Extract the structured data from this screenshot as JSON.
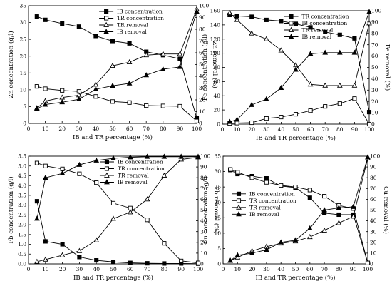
{
  "colors": {
    "ink": "#000000",
    "background": "#ffffff"
  },
  "chart_data": [
    {
      "id": "zn",
      "type": "line",
      "xlabel": "IB and TR percentage (%)",
      "ylabel_left": "Zn concentration (g/l)",
      "ylabel_right": "Zn removal (%)",
      "xlim": [
        0,
        100
      ],
      "ylim_left": [
        0,
        35
      ],
      "ylim_right": [
        0,
        100
      ],
      "xticks": [
        "0",
        "10",
        "20",
        "30",
        "40",
        "50",
        "60",
        "70",
        "80",
        "90",
        "100"
      ],
      "yticks_left": [
        "0",
        "5",
        "10",
        "15",
        "20",
        "25",
        "30",
        "35"
      ],
      "yticks_right": [
        "0",
        "10",
        "20",
        "30",
        "40",
        "50",
        "60",
        "70",
        "80",
        "90",
        "100"
      ],
      "legend": "top-right",
      "series": [
        {
          "name": "IB concentration",
          "axis": "left",
          "marker": "filled-square",
          "x": [
            5,
            10,
            20,
            30,
            40,
            50,
            60,
            70,
            80,
            90,
            100
          ],
          "y": [
            31.8,
            30.8,
            29.7,
            28.8,
            26,
            24.5,
            23.8,
            21.3,
            20.3,
            19.2,
            1.5
          ]
        },
        {
          "name": "TR concentration",
          "axis": "left",
          "marker": "open-square",
          "x": [
            5,
            10,
            20,
            30,
            40,
            50,
            60,
            70,
            80,
            90,
            100
          ],
          "y": [
            11,
            10.3,
            9.8,
            9.5,
            8,
            6.5,
            6.2,
            5.3,
            5.2,
            5.1,
            0.7
          ]
        },
        {
          "name": "TR removal",
          "axis": "right",
          "marker": "open-triangle",
          "x": [
            5,
            10,
            20,
            30,
            40,
            50,
            60,
            70,
            80,
            90,
            100
          ],
          "y": [
            13,
            19,
            22,
            24,
            33,
            49,
            52,
            58,
            59,
            59,
            97
          ]
        },
        {
          "name": "IB removal",
          "axis": "right",
          "marker": "filled-triangle",
          "x": [
            5,
            10,
            20,
            30,
            40,
            50,
            60,
            70,
            80,
            90,
            100
          ],
          "y": [
            12.5,
            16,
            18,
            20.5,
            29,
            32,
            34,
            41,
            46,
            48,
            95
          ]
        }
      ]
    },
    {
      "id": "fe",
      "type": "line",
      "xlabel": "IB and TR percentage (%)",
      "ylabel_left": "Fe concentration (g/l)",
      "ylabel_right": "Fe removal (%)",
      "xlim": [
        0,
        100
      ],
      "ylim_left": [
        0,
        160
      ],
      "ylim_right": [
        0,
        100
      ],
      "xticks": [
        "0",
        "10",
        "20",
        "30",
        "40",
        "50",
        "60",
        "70",
        "80",
        "90",
        "100"
      ],
      "yticks_left": [
        "0",
        "20",
        "40",
        "60",
        "80",
        "100",
        "120",
        "140",
        "160"
      ],
      "yticks_right": [
        "0",
        "10",
        "20",
        "30",
        "40",
        "50",
        "60",
        "70",
        "80",
        "90",
        "100"
      ],
      "legend": "top-right",
      "series": [
        {
          "name": "TR concentration",
          "axis": "left",
          "marker": "filled-square",
          "x": [
            5,
            10,
            20,
            30,
            40,
            50,
            60,
            70,
            80,
            90,
            100
          ],
          "y": [
            154,
            152.5,
            151.5,
            147,
            145.5,
            141.5,
            136.5,
            130,
            126,
            121,
            17
          ]
        },
        {
          "name": "IB concentration",
          "axis": "left",
          "marker": "open-square",
          "x": [
            5,
            10,
            20,
            30,
            40,
            50,
            60,
            70,
            80,
            90,
            100
          ],
          "y": [
            1,
            1.5,
            2,
            8,
            10,
            14,
            19,
            25,
            29,
            36,
            0
          ]
        },
        {
          "name": "TR removal",
          "axis": "right",
          "marker": "open-triangle",
          "x": [
            5,
            10,
            20,
            30,
            40,
            50,
            60,
            70,
            80,
            90,
            100
          ],
          "y": [
            98,
            92,
            80,
            75,
            65,
            52,
            35,
            34,
            34,
            34,
            89
          ]
        },
        {
          "name": "IB removal",
          "axis": "right",
          "marker": "filled-triangle",
          "x": [
            5,
            10,
            20,
            30,
            40,
            50,
            60,
            70,
            80,
            90,
            100
          ],
          "y": [
            2,
            4,
            17,
            22,
            32,
            48,
            62,
            63,
            63,
            63,
            99
          ]
        }
      ]
    },
    {
      "id": "pb",
      "type": "line",
      "xlabel": "IB and TR percentage (%)",
      "ylabel_left": "Pb concentration (g/l)",
      "ylabel_right": "Pb removal (%)",
      "xlim": [
        0,
        100
      ],
      "ylim_left": [
        0,
        5.5
      ],
      "ylim_right": [
        0,
        100
      ],
      "xticks": [
        "0",
        "10",
        "20",
        "30",
        "40",
        "50",
        "60",
        "70",
        "80",
        "90",
        "100"
      ],
      "yticks_left": [
        "0.0",
        "0.5",
        "1.0",
        "1.5",
        "2.0",
        "2.5",
        "3.0",
        "3.5",
        "4.0",
        "4.5",
        "5.0",
        "5.5"
      ],
      "yticks_right": [
        "0",
        "10",
        "20",
        "30",
        "40",
        "50",
        "60",
        "70",
        "80",
        "90",
        "100"
      ],
      "legend": "top-right",
      "series": [
        {
          "name": "IB concentration",
          "axis": "left",
          "marker": "filled-square",
          "x": [
            5,
            10,
            20,
            30,
            40,
            50,
            60,
            70,
            80,
            90,
            100
          ],
          "y": [
            3.2,
            1.15,
            1,
            0.35,
            0.18,
            0.1,
            0.05,
            0.03,
            0.02,
            0.02,
            0.01
          ]
        },
        {
          "name": "TR concentration",
          "axis": "left",
          "marker": "open-square",
          "x": [
            5,
            10,
            20,
            30,
            40,
            50,
            60,
            70,
            80,
            90,
            100
          ],
          "y": [
            5.15,
            5,
            4.85,
            4.6,
            4.15,
            3.1,
            2.85,
            2.25,
            1.05,
            0.15,
            0.05
          ]
        },
        {
          "name": "TR removal",
          "axis": "right",
          "marker": "open-triangle",
          "x": [
            5,
            10,
            20,
            30,
            40,
            50,
            60,
            70,
            80,
            90,
            100
          ],
          "y": [
            2,
            4,
            8,
            12,
            22,
            42,
            48,
            60,
            82,
            97,
            99
          ]
        },
        {
          "name": "IB removal",
          "axis": "right",
          "marker": "filled-triangle",
          "x": [
            5,
            10,
            20,
            30,
            40,
            50,
            60,
            70,
            80,
            90,
            100
          ],
          "y": [
            42,
            80,
            84,
            92,
            96,
            98,
            99,
            99.5,
            99.5,
            99.5,
            99.5
          ]
        }
      ]
    },
    {
      "id": "cu",
      "type": "line",
      "xlabel": "IB and TR percentage (%)",
      "ylabel_left": "Cu concentration (g/l)",
      "ylabel_right": "Cu removal (%)",
      "xlim": [
        0,
        100
      ],
      "ylim_left": [
        0,
        35
      ],
      "ylim_right": [
        0,
        100
      ],
      "xticks": [
        "0",
        "10",
        "20",
        "30",
        "40",
        "50",
        "60",
        "70",
        "80",
        "90",
        "100"
      ],
      "yticks_left": [
        "0",
        "5",
        "10",
        "15",
        "20",
        "25",
        "30",
        "35"
      ],
      "yticks_right": [
        "0",
        "10",
        "20",
        "30",
        "40",
        "50",
        "60",
        "70",
        "80",
        "90",
        "100"
      ],
      "legend": "middle-left",
      "series": [
        {
          "name": "IB concentration",
          "axis": "left",
          "marker": "filled-square",
          "x": [
            5,
            10,
            20,
            30,
            40,
            50,
            60,
            70,
            80,
            90,
            100
          ],
          "y": [
            30.5,
            29.2,
            28.5,
            27.8,
            25.3,
            24.8,
            21.5,
            16.5,
            16,
            16,
            0.3
          ]
        },
        {
          "name": "TR concentration",
          "axis": "left",
          "marker": "open-square",
          "x": [
            5,
            10,
            20,
            30,
            40,
            50,
            60,
            70,
            80,
            90,
            100
          ],
          "y": [
            30.7,
            29.8,
            28,
            26.5,
            25.5,
            25,
            24,
            22,
            19,
            18,
            0.3
          ]
        },
        {
          "name": "TR removal",
          "axis": "right",
          "marker": "open-triangle",
          "x": [
            5,
            10,
            20,
            30,
            40,
            50,
            60,
            70,
            80,
            90,
            100
          ],
          "y": [
            3,
            6,
            12,
            16,
            19,
            21,
            25,
            31,
            38,
            44,
            98
          ]
        },
        {
          "name": "IB removal",
          "axis": "right",
          "marker": "filled-triangle",
          "x": [
            5,
            10,
            20,
            30,
            40,
            50,
            60,
            70,
            80,
            90,
            100
          ],
          "y": [
            3,
            8,
            10,
            13,
            20,
            22,
            33,
            50,
            52,
            53,
            99
          ]
        }
      ]
    }
  ]
}
